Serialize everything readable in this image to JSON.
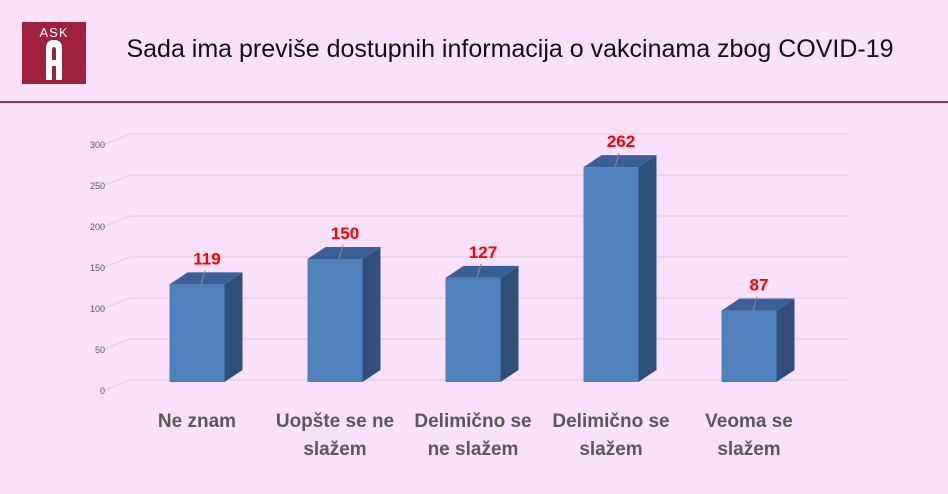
{
  "logo": {
    "text": "ASK",
    "colors": {
      "background": "#a11f3f",
      "glyph": "#ffffff"
    }
  },
  "chart_data": {
    "type": "bar",
    "title": "Sada ima previše dostupnih informacija o vakcinama zbog COVID-19",
    "categories": [
      "Ne znam",
      "Uopšte se ne slažem",
      "Delimično se ne slažem",
      "Delimično se slažem",
      "Veoma se slažem"
    ],
    "values": [
      119,
      150,
      127,
      262,
      87
    ],
    "data_labels": [
      "119",
      "150",
      "127",
      "262",
      "87"
    ],
    "yticks": [
      "0",
      "50",
      "100",
      "150",
      "200",
      "250",
      "300"
    ],
    "ylim": [
      0,
      300
    ],
    "xlabel": "",
    "ylabel": "",
    "grid": true,
    "style": "3d-column",
    "colors": {
      "bar_front": "#4f81bd",
      "bar_side": "#2f4f7a",
      "bar_top": "#3a5f96",
      "label": "#ff0000",
      "grid": "#d9d0d9"
    }
  }
}
